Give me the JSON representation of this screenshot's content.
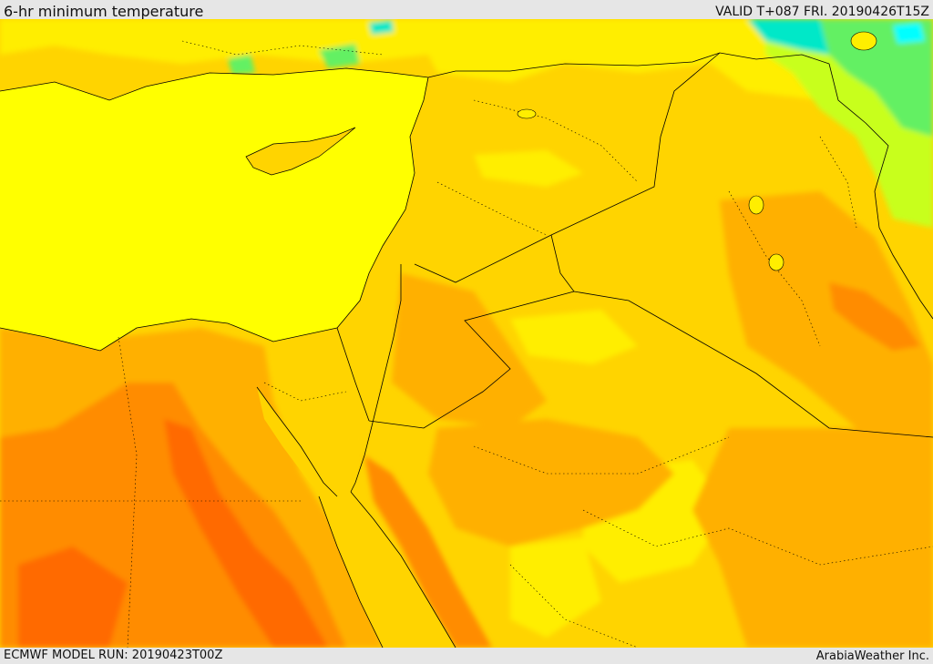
{
  "header": {
    "title": "6-hr minimum temperature",
    "valid": "VALID T+087 FRI. 20190426T15Z"
  },
  "footer": {
    "model_run": "ECMWF MODEL RUN: 20190423T00Z",
    "credit": "ArabiaWeather Inc."
  },
  "map": {
    "variable": "6-hr minimum temperature",
    "colors": {
      "sea": "#ffff00",
      "warm_light": "#ffd400",
      "warm": "#ffb000",
      "hot": "#ff8c00",
      "very_hot": "#ff6a00",
      "mild": "#ffee00",
      "cool_lime": "#c8ff1e",
      "cool_green": "#64f064",
      "cool_cyan": "#00e8c8",
      "cold_aqua": "#00ffff",
      "borders": "#000000"
    }
  }
}
